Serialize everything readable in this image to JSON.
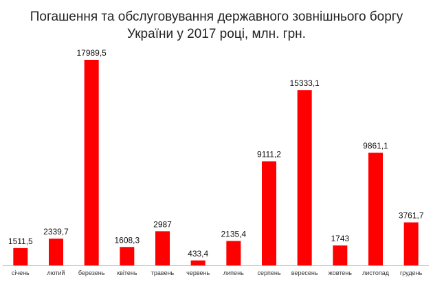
{
  "chart_data": {
    "type": "bar",
    "title_lines": [
      "Погашення та обслуговування державного зовнішнього боргу",
      "України у 2017 році, млн. грн."
    ],
    "categories": [
      "січень",
      "лютий",
      "березень",
      "квітень",
      "травень",
      "червень",
      "липень",
      "серпень",
      "вересень",
      "жовтень",
      "листопад",
      "грудень"
    ],
    "values": [
      1511.5,
      2339.7,
      17989.5,
      1608.3,
      2987,
      433.4,
      2135.4,
      9111.2,
      15333.1,
      1743,
      9861.1,
      3761.7
    ],
    "value_labels": [
      "1511,5",
      "2339,7",
      "17989,5",
      "1608,3",
      "2987",
      "433,4",
      "2135,4",
      "9111,2",
      "15333,1",
      "1743",
      "9861,1",
      "3761,7"
    ],
    "bar_color": "#ff0000",
    "xlabel": "",
    "ylabel": "",
    "ylim": [
      0,
      18000
    ],
    "grid": false,
    "legend": "none"
  }
}
